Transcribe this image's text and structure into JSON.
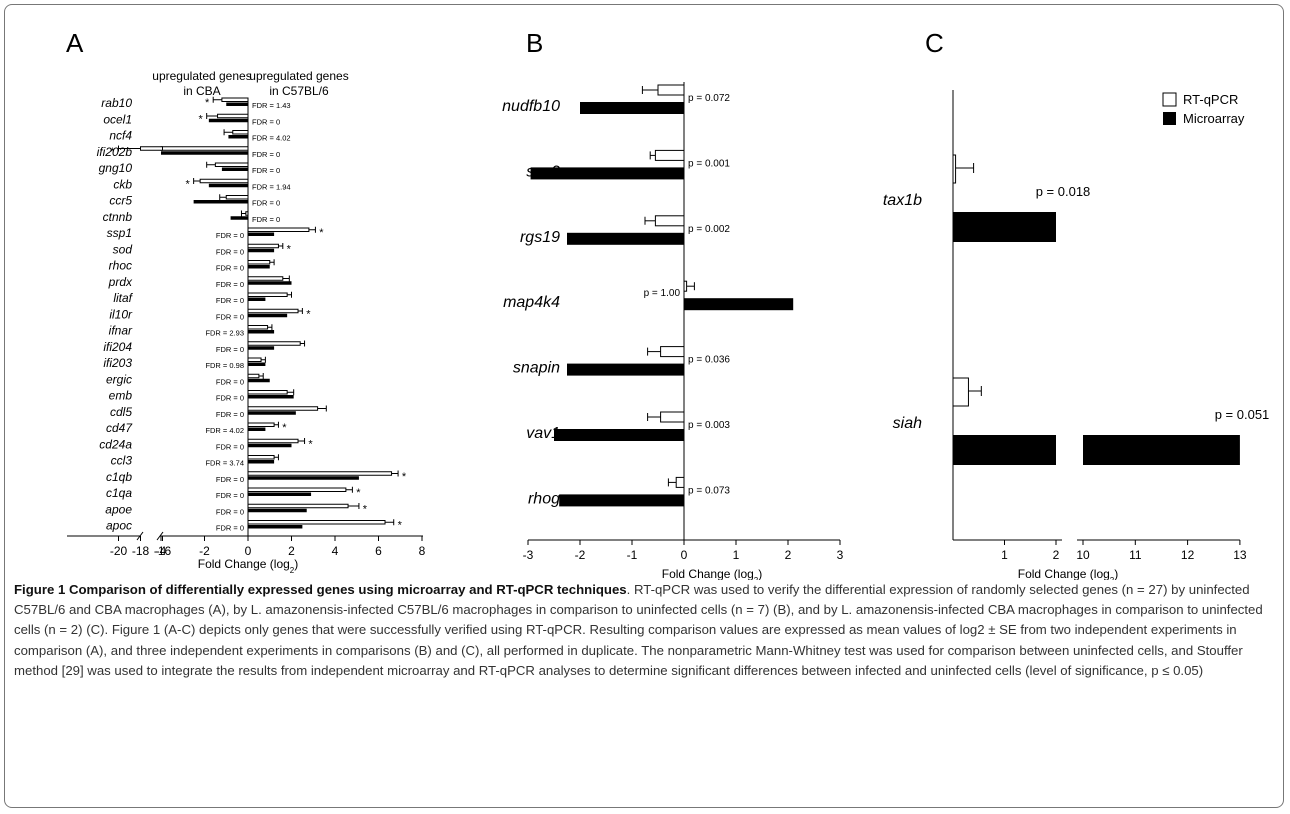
{
  "panels": {
    "a": {
      "letter": "A"
    },
    "b": {
      "letter": "B"
    },
    "c": {
      "letter": "C"
    }
  },
  "legend": {
    "open": "RT-qPCR",
    "filled": "Microarray"
  },
  "chart_data": [
    {
      "panel": "A",
      "type": "bar",
      "orientation": "horizontal",
      "headers": {
        "left": [
          "upregulated genes",
          "in CBA"
        ],
        "right": [
          "upregulated genes",
          "in C57BL/6"
        ]
      },
      "xlabel": "Fold Change (log2)",
      "xticks_broken": [
        "-20",
        "-18",
        "-16"
      ],
      "xticks": [
        "-4",
        "-2",
        "0",
        "2",
        "4",
        "6",
        "8"
      ],
      "xlim": [
        -4,
        8
      ],
      "axis_break": [
        -20,
        -16
      ],
      "categories": [
        "rab10",
        "ocel1",
        "ncf4",
        "ifi202b",
        "gng10",
        "ckb",
        "ccr5",
        "ctnnb",
        "ssp1",
        "sod",
        "rhoc",
        "prdx",
        "litaf",
        "il10r",
        "ifnar",
        "ifi204",
        "ifi203",
        "ergic",
        "emb",
        "cdl5",
        "cd47",
        "cd24a",
        "ccl3",
        "c1qb",
        "c1qa",
        "apoe",
        "apoc"
      ],
      "series": [
        {
          "name": "RT-qPCR",
          "values": [
            -1.2,
            -1.4,
            -0.7,
            -18.0,
            -1.5,
            -2.2,
            -1.0,
            -0.1,
            2.8,
            1.4,
            1.0,
            1.6,
            1.8,
            2.3,
            0.9,
            2.4,
            0.6,
            0.5,
            1.8,
            3.2,
            1.2,
            2.3,
            1.2,
            6.6,
            4.5,
            4.6,
            6.3
          ],
          "errors": [
            0.4,
            0.5,
            0.4,
            2.0,
            0.4,
            0.3,
            0.3,
            0.2,
            0.3,
            0.2,
            0.2,
            0.3,
            0.2,
            0.2,
            0.2,
            0.2,
            0.2,
            0.2,
            0.3,
            0.4,
            0.2,
            0.3,
            0.2,
            0.3,
            0.3,
            0.5,
            0.4
          ]
        },
        {
          "name": "Microarray",
          "values": [
            -1.0,
            -1.8,
            -0.9,
            -4.0,
            -1.2,
            -1.8,
            -2.5,
            -0.8,
            1.2,
            1.2,
            1.0,
            2.0,
            0.8,
            1.8,
            1.2,
            1.2,
            0.8,
            1.0,
            2.1,
            2.2,
            0.8,
            2.0,
            1.2,
            5.1,
            2.9,
            2.7,
            2.5
          ]
        }
      ],
      "fdr": [
        "FDR = 1.43",
        "FDR = 0",
        "FDR = 4.02",
        "FDR = 0",
        "FDR = 0",
        "FDR = 1.94",
        "FDR = 0",
        "FDR = 0",
        "FDR = 0",
        "FDR = 0",
        "FDR = 0",
        "FDR = 0",
        "FDR = 0",
        "FDR = 0",
        "FDR = 2.93",
        "FDR = 0",
        "FDR = 0.98",
        "FDR = 0",
        "FDR = 0",
        "FDR = 0",
        "FDR = 4.02",
        "FDR = 0",
        "FDR = 3.74",
        "FDR = 0",
        "FDR = 0",
        "FDR = 0",
        "FDR = 0"
      ],
      "significant": [
        "rab10",
        "ocel1",
        "ifi202b",
        "ckb",
        "ssp1",
        "sod",
        "il10r",
        "cd47",
        "cd24a",
        "c1qb",
        "c1qa",
        "apoe",
        "apoc"
      ]
    },
    {
      "panel": "B",
      "type": "bar",
      "orientation": "horizontal",
      "xlabel": "Fold Change (log2)",
      "xticks": [
        "-3",
        "-2",
        "-1",
        "0",
        "1",
        "2",
        "3"
      ],
      "xlim": [
        -3,
        3
      ],
      "categories": [
        "nudfb10",
        "snx2",
        "rgs19",
        "map4k4",
        "snapin",
        "vav1",
        "rhog"
      ],
      "series": [
        {
          "name": "RT-qPCR",
          "values": [
            -0.5,
            -0.55,
            -0.55,
            0.05,
            -0.45,
            -0.45,
            -0.15
          ],
          "errors": [
            0.3,
            0.1,
            0.2,
            0.15,
            0.25,
            0.25,
            0.15
          ]
        },
        {
          "name": "Microarray",
          "values": [
            -2.0,
            -2.95,
            -2.25,
            2.1,
            -2.25,
            -2.5,
            -2.4
          ]
        }
      ],
      "p_values": [
        "p = 0.072",
        "p = 0.001",
        "p = 0.002",
        "p = 1.00",
        "p = 0.036",
        "p = 0.003",
        "p = 0.073"
      ]
    },
    {
      "panel": "C",
      "type": "bar",
      "orientation": "horizontal",
      "xlabel": "Fold Change (log2)",
      "xticks": [
        "1",
        "2",
        "10",
        "11",
        "12",
        "13"
      ],
      "xlim": [
        0,
        13
      ],
      "axis_break": [
        2,
        10
      ],
      "categories": [
        "tax1b",
        "siah"
      ],
      "series": [
        {
          "name": "RT-qPCR",
          "values": [
            0.05,
            0.3
          ],
          "errors": [
            0.35,
            0.25
          ]
        },
        {
          "name": "Microarray",
          "values": [
            2.0,
            13.0
          ]
        }
      ],
      "p_values": [
        "p = 0.018",
        "p = 0.051"
      ]
    }
  ],
  "caption": {
    "title": "Figure 1 Comparison of differentially expressed genes using microarray and RT-qPCR techniques",
    "body": ". RT-qPCR was used to verify the differential expression of randomly selected genes (n = 27) by uninfected C57BL/6 and CBA macrophages (A), by L. amazonensis-infected C57BL/6 macrophages in comparison to uninfected cells (n = 7) (B), and by L. amazonensis-infected CBA macrophages in comparison to uninfected cells (n = 2) (C). Figure 1 (A-C) depicts only genes that were successfully verified using RT-qPCR. Resulting comparison values are expressed as mean values of log2 ± SE from two independent experiments in comparison (A), and three independent experiments in comparisons (B) and (C), all performed in duplicate. The nonparametric Mann-Whitney test was used for comparison between uninfected cells, and Stouffer method [29] was used to integrate the results from independent microarray and RT-qPCR analyses to determine significant differences between infected and uninfected cells (level of significance, p ≤ 0.05)"
  }
}
